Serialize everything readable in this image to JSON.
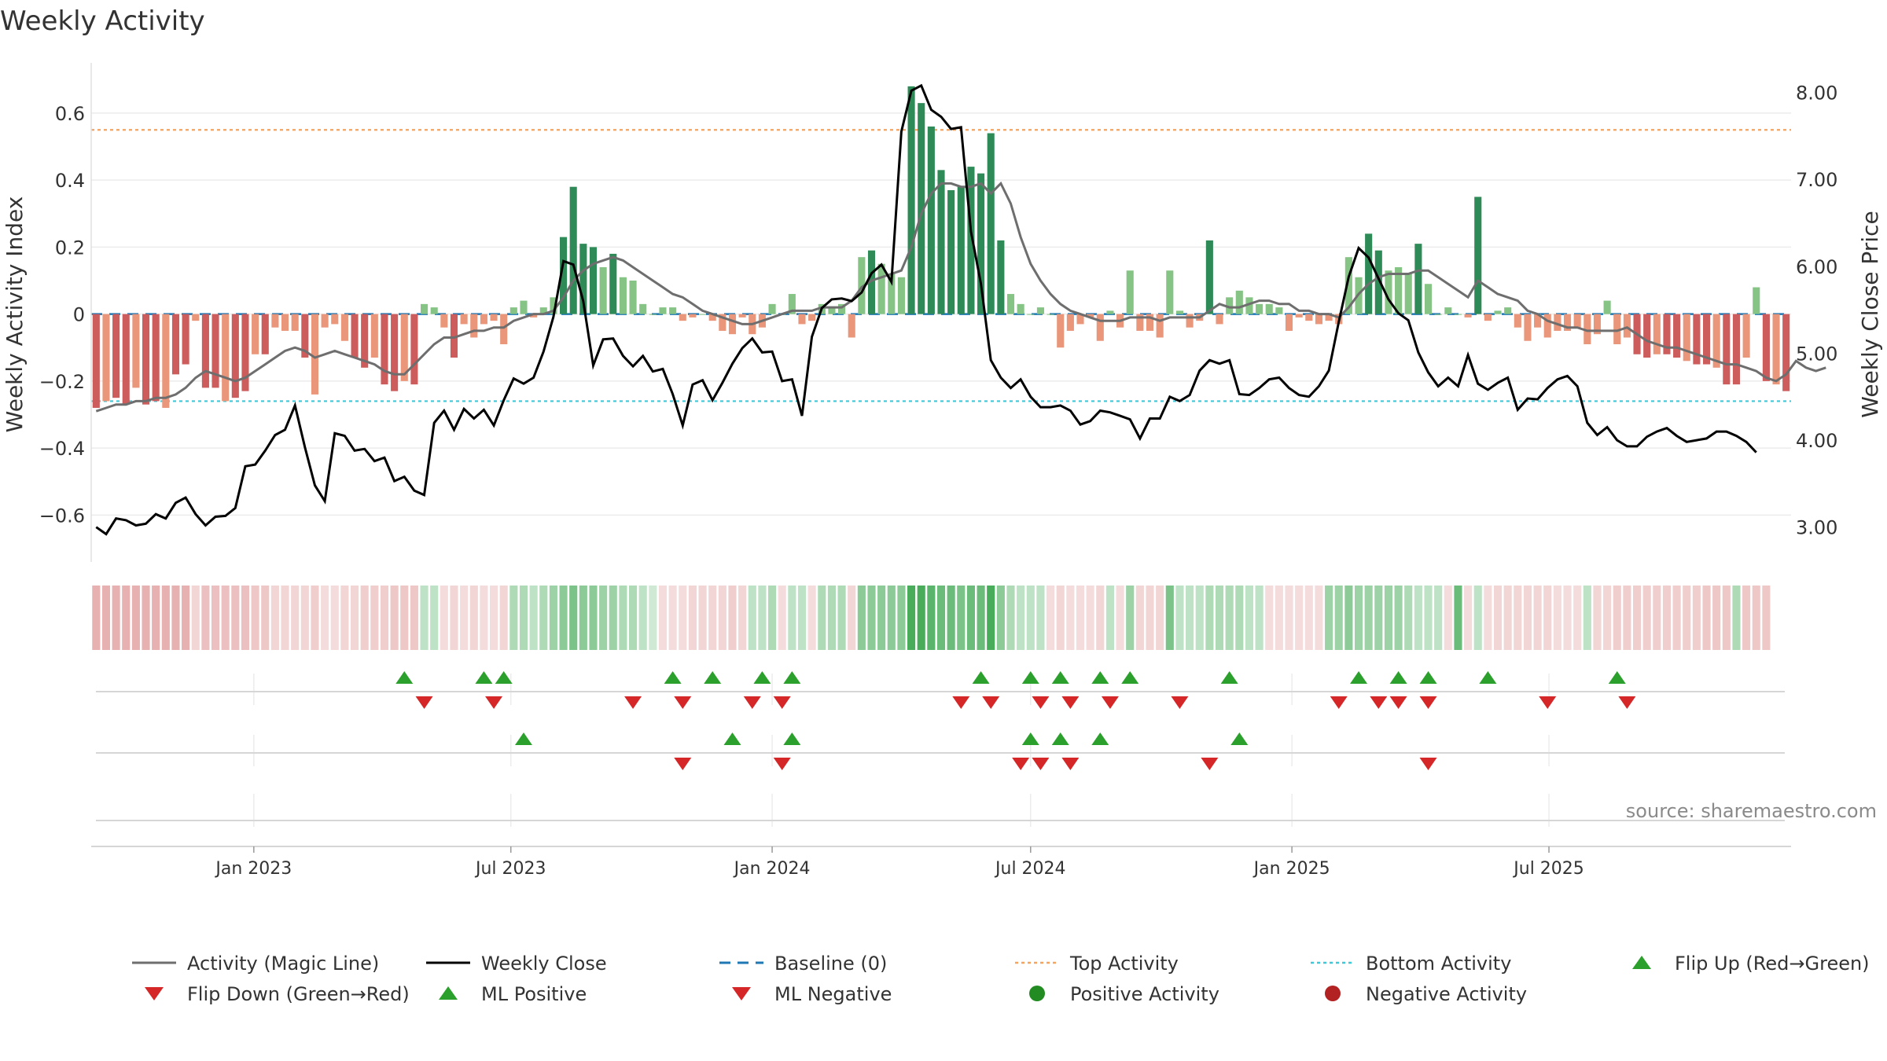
{
  "colors": {
    "pos_dark": "#2e8b57",
    "pos_light": "#85c485",
    "neg_dark": "#cd5c5c",
    "neg_light": "#e9967a",
    "close_line": "#000000",
    "magic_line": "#6e6e6e",
    "baseline": "#1f77b4",
    "top_activity": "#f4a460",
    "bottom_activity": "#40c8d8",
    "flip_up": "#2ca02c",
    "flip_down": "#d62728",
    "positive_dot": "#228b22",
    "negative_dot": "#b22222"
  },
  "chart_data": {
    "type": "bar",
    "title": "Weekly Activity",
    "ylabel": "Weekly Activity Index",
    "y2label": "Weekly Close Price",
    "source": "source: sharemaestro.com",
    "x_start": "2022-09-12",
    "week_step_days": 7,
    "ylim": [
      -0.74,
      0.75
    ],
    "y_ticks": [
      0.6,
      0.4,
      0.2,
      0,
      -0.2,
      -0.4,
      -0.6
    ],
    "y_tick_labels": [
      "0.6",
      "0.4",
      "0.2",
      "0",
      "−0.2",
      "−0.4",
      "−0.6"
    ],
    "y2lim": [
      2.6,
      8.34
    ],
    "y2_ticks": [
      8,
      7,
      6,
      5,
      4,
      3
    ],
    "y2_tick_labels": [
      "8.00",
      "7.00",
      "6.00",
      "5.00",
      "4.00",
      "3.00"
    ],
    "x_ticks": [
      {
        "label": "Jan 2023",
        "date": "2023-01-01"
      },
      {
        "label": "Jul 2023",
        "date": "2023-07-01"
      },
      {
        "label": "Jan 2024",
        "date": "2024-01-01"
      },
      {
        "label": "Jul 2024",
        "date": "2024-07-01"
      },
      {
        "label": "Jan 2025",
        "date": "2025-01-01"
      },
      {
        "label": "Jul 2025",
        "date": "2025-07-01"
      }
    ],
    "top_activity": 0.55,
    "bottom_activity": -0.26,
    "activity": [
      -0.28,
      -0.26,
      -0.25,
      -0.27,
      -0.22,
      -0.27,
      -0.26,
      -0.28,
      -0.18,
      -0.15,
      -0.02,
      -0.22,
      -0.22,
      -0.26,
      -0.25,
      -0.23,
      -0.12,
      -0.12,
      -0.04,
      -0.05,
      -0.05,
      -0.13,
      -0.24,
      -0.04,
      -0.03,
      -0.08,
      -0.13,
      -0.16,
      -0.13,
      -0.21,
      -0.23,
      -0.2,
      -0.21,
      0.03,
      0.02,
      -0.04,
      -0.13,
      -0.03,
      -0.07,
      -0.03,
      -0.02,
      -0.09,
      0.02,
      0.04,
      -0.01,
      0.02,
      0.05,
      0.23,
      0.38,
      0.21,
      0.2,
      0.14,
      0.18,
      0.11,
      0.1,
      0.03,
      0.0,
      0.02,
      0.02,
      -0.02,
      -0.01,
      0.0,
      -0.02,
      -0.05,
      -0.06,
      -0.01,
      -0.06,
      -0.04,
      0.03,
      0.0,
      0.06,
      -0.03,
      -0.02,
      0.03,
      0.02,
      0.03,
      -0.07,
      0.17,
      0.19,
      0.15,
      0.12,
      0.11,
      0.68,
      0.63,
      0.56,
      0.43,
      0.37,
      0.38,
      0.44,
      0.42,
      0.54,
      0.22,
      0.06,
      0.03,
      0.0,
      0.02,
      0.0,
      -0.1,
      -0.05,
      -0.03,
      -0.01,
      -0.08,
      0.01,
      -0.04,
      0.13,
      -0.05,
      -0.05,
      -0.07,
      0.13,
      0.01,
      -0.04,
      -0.02,
      0.22,
      -0.03,
      0.05,
      0.07,
      0.05,
      0.03,
      0.03,
      0.02,
      -0.05,
      -0.01,
      -0.02,
      -0.03,
      -0.02,
      -0.03,
      0.17,
      0.11,
      0.24,
      0.19,
      0.13,
      0.14,
      0.12,
      0.21,
      0.09,
      0.0,
      0.02,
      0.0,
      -0.01,
      0.35,
      -0.02,
      0.01,
      0.02,
      -0.04,
      -0.08,
      -0.04,
      -0.07,
      -0.05,
      -0.05,
      -0.04,
      -0.09,
      -0.06,
      0.04,
      -0.09,
      -0.07,
      -0.12,
      -0.13,
      -0.12,
      -0.12,
      -0.13,
      -0.14,
      -0.15,
      -0.15,
      -0.16,
      -0.21,
      -0.21,
      -0.13,
      0.08,
      -0.2,
      -0.21,
      -0.23
    ],
    "activity_magic_line": [
      -0.29,
      -0.28,
      -0.27,
      -0.27,
      -0.26,
      -0.26,
      -0.25,
      -0.25,
      -0.24,
      -0.22,
      -0.19,
      -0.17,
      -0.18,
      -0.19,
      -0.2,
      -0.19,
      -0.17,
      -0.15,
      -0.13,
      -0.11,
      -0.1,
      -0.11,
      -0.13,
      -0.12,
      -0.11,
      -0.12,
      -0.13,
      -0.14,
      -0.15,
      -0.17,
      -0.18,
      -0.18,
      -0.15,
      -0.12,
      -0.09,
      -0.07,
      -0.07,
      -0.06,
      -0.05,
      -0.05,
      -0.04,
      -0.04,
      -0.02,
      -0.01,
      0.0,
      0.0,
      0.01,
      0.05,
      0.1,
      0.13,
      0.15,
      0.16,
      0.17,
      0.16,
      0.14,
      0.12,
      0.1,
      0.08,
      0.06,
      0.05,
      0.03,
      0.01,
      0.0,
      -0.01,
      -0.02,
      -0.03,
      -0.03,
      -0.02,
      -0.01,
      0.0,
      0.01,
      0.01,
      0.01,
      0.02,
      0.02,
      0.02,
      0.04,
      0.08,
      0.1,
      0.11,
      0.12,
      0.13,
      0.2,
      0.3,
      0.36,
      0.39,
      0.39,
      0.38,
      0.38,
      0.39,
      0.36,
      0.39,
      0.33,
      0.23,
      0.15,
      0.1,
      0.06,
      0.03,
      0.01,
      0.0,
      -0.01,
      -0.02,
      -0.02,
      -0.02,
      -0.01,
      -0.01,
      -0.01,
      -0.02,
      -0.01,
      -0.01,
      -0.01,
      -0.01,
      0.01,
      0.03,
      0.02,
      0.02,
      0.03,
      0.04,
      0.04,
      0.03,
      0.03,
      0.01,
      0.01,
      0.0,
      0.0,
      -0.01,
      0.02,
      0.06,
      0.09,
      0.11,
      0.12,
      0.12,
      0.12,
      0.13,
      0.13,
      0.11,
      0.09,
      0.07,
      0.05,
      0.1,
      0.08,
      0.06,
      0.05,
      0.04,
      0.01,
      0.0,
      -0.02,
      -0.03,
      -0.04,
      -0.04,
      -0.05,
      -0.05,
      -0.05,
      -0.05,
      -0.04,
      -0.06,
      -0.08,
      -0.09,
      -0.1,
      -0.1,
      -0.11,
      -0.12,
      -0.13,
      -0.14,
      -0.15,
      -0.15,
      -0.16,
      -0.17,
      -0.19,
      -0.2,
      -0.18,
      -0.14,
      -0.16,
      -0.17,
      -0.16
    ],
    "weekly_close": [
      3.0,
      2.92,
      3.1,
      3.08,
      3.02,
      3.04,
      3.15,
      3.1,
      3.28,
      3.34,
      3.15,
      3.02,
      3.12,
      3.13,
      3.22,
      3.7,
      3.72,
      3.88,
      4.06,
      4.12,
      4.4,
      3.92,
      3.48,
      3.3,
      4.08,
      4.05,
      3.88,
      3.9,
      3.76,
      3.8,
      3.53,
      3.58,
      3.42,
      3.37,
      4.2,
      4.34,
      4.12,
      4.36,
      4.25,
      4.35,
      4.17,
      4.46,
      4.71,
      4.65,
      4.72,
      5.02,
      5.42,
      6.06,
      6.02,
      5.6,
      4.86,
      5.16,
      5.17,
      4.97,
      4.85,
      4.97,
      4.79,
      4.82,
      4.53,
      4.17,
      4.64,
      4.69,
      4.46,
      4.66,
      4.88,
      5.06,
      5.17,
      5.01,
      5.02,
      4.68,
      4.7,
      4.28,
      5.19,
      5.52,
      5.62,
      5.63,
      5.6,
      5.7,
      5.92,
      6.02,
      5.82,
      7.55,
      8.02,
      8.08,
      7.8,
      7.72,
      7.58,
      7.6,
      6.4,
      5.8,
      4.92,
      4.72,
      4.6,
      4.7,
      4.5,
      4.38,
      4.38,
      4.4,
      4.34,
      4.18,
      4.22,
      4.34,
      4.32,
      4.28,
      4.24,
      4.02,
      4.25,
      4.25,
      4.5,
      4.45,
      4.52,
      4.8,
      4.92,
      4.88,
      4.92,
      4.53,
      4.52,
      4.6,
      4.7,
      4.72,
      4.6,
      4.52,
      4.5,
      4.62,
      4.8,
      5.36,
      5.88,
      6.21,
      6.1,
      5.86,
      5.62,
      5.46,
      5.38,
      5.01,
      4.78,
      4.62,
      4.72,
      4.62,
      4.98,
      4.65,
      4.58,
      4.66,
      4.72,
      4.35,
      4.48,
      4.47,
      4.6,
      4.7,
      4.74,
      4.62,
      4.2,
      4.06,
      4.15,
      4.0,
      3.93,
      3.93,
      4.04,
      4.1,
      4.14,
      4.05,
      3.98,
      4.0,
      4.02,
      4.1,
      4.1,
      4.05,
      3.98,
      3.86
    ],
    "heat_strip": [
      -0.8,
      -0.8,
      -0.8,
      -0.8,
      -0.8,
      -0.8,
      -0.8,
      -0.8,
      -0.8,
      -0.8,
      -0.3,
      -0.6,
      -0.6,
      -0.6,
      -0.6,
      -0.6,
      -0.5,
      -0.5,
      -0.3,
      -0.3,
      -0.3,
      -0.3,
      -0.4,
      -0.2,
      -0.2,
      -0.3,
      -0.3,
      -0.4,
      -0.4,
      -0.4,
      -0.5,
      -0.5,
      -0.5,
      0.2,
      0.2,
      -0.2,
      -0.3,
      -0.2,
      -0.3,
      -0.2,
      -0.2,
      -0.3,
      0.3,
      0.3,
      0.2,
      0.3,
      0.4,
      0.5,
      0.6,
      0.5,
      0.5,
      0.4,
      0.4,
      0.3,
      0.3,
      0.2,
      0.1,
      -0.2,
      -0.2,
      -0.2,
      -0.3,
      -0.3,
      -0.3,
      -0.3,
      -0.4,
      -0.3,
      0.2,
      0.2,
      0.3,
      -0.2,
      0.2,
      0.2,
      -0.2,
      0.3,
      0.3,
      0.3,
      -0.3,
      0.5,
      0.5,
      0.5,
      0.5,
      0.5,
      0.9,
      0.9,
      0.8,
      0.7,
      0.7,
      0.6,
      0.7,
      0.7,
      0.9,
      0.5,
      0.3,
      0.2,
      0.2,
      0.2,
      -0.2,
      -0.3,
      -0.2,
      -0.2,
      -0.2,
      -0.3,
      0.2,
      -0.2,
      0.4,
      -0.3,
      -0.3,
      -0.3,
      0.6,
      0.2,
      0.2,
      0.2,
      0.3,
      0.3,
      0.3,
      0.3,
      0.2,
      0.2,
      -0.2,
      -0.2,
      -0.2,
      -0.2,
      -0.2,
      -0.2,
      0.4,
      0.4,
      0.5,
      0.4,
      0.4,
      0.4,
      0.4,
      0.4,
      0.3,
      0.2,
      0.2,
      0.2,
      -0.2,
      0.7,
      -0.2,
      0.2,
      -0.2,
      -0.3,
      -0.3,
      -0.3,
      -0.3,
      -0.3,
      -0.3,
      -0.2,
      -0.2,
      -0.2,
      0.2,
      -0.3,
      -0.3,
      -0.4,
      -0.4,
      -0.4,
      -0.4,
      -0.4,
      -0.4,
      -0.4,
      -0.4,
      -0.4,
      -0.5,
      -0.5,
      -0.5,
      0.3,
      -0.5,
      -0.5,
      -0.5
    ],
    "flip_up_weeks": [
      31,
      39,
      41,
      58,
      62,
      67,
      70,
      89,
      94,
      97,
      101,
      104,
      114,
      127,
      131,
      134,
      140,
      153
    ],
    "flip_down_weeks": [
      33,
      40,
      54,
      59,
      66,
      69,
      87,
      90,
      95,
      98,
      102,
      109,
      125,
      129,
      131,
      134,
      146,
      154
    ],
    "ml_positive_weeks": [
      43,
      64,
      70,
      94,
      97,
      101,
      115
    ],
    "ml_negative_weeks": [
      59,
      69,
      93,
      95,
      98,
      112,
      134
    ],
    "legend": [
      "Activity (Magic Line)",
      "Weekly Close",
      "Baseline (0)",
      "Top Activity",
      "Bottom Activity",
      "Flip Up (Red→Green)",
      "Flip Down (Green→Red)",
      "ML Positive",
      "ML Negative",
      "Positive Activity",
      "Negative Activity"
    ]
  }
}
